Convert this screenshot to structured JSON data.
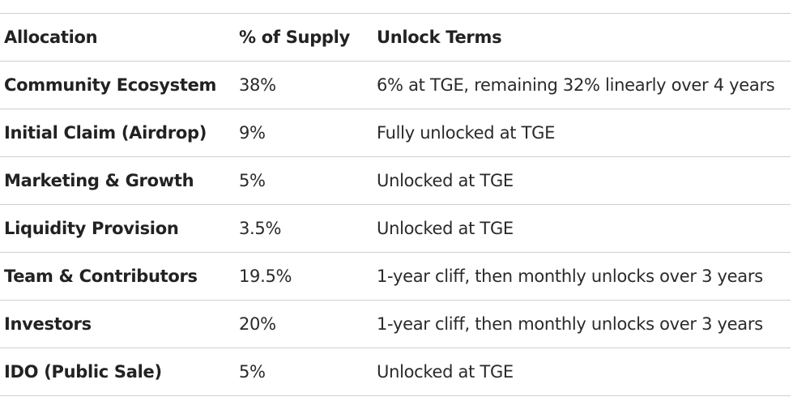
{
  "table": {
    "headers": {
      "allocation": "Allocation",
      "supply": "% of Supply",
      "terms": "Unlock Terms"
    },
    "rows": [
      {
        "allocation": "Community Ecosystem",
        "supply": "38%",
        "terms": "6% at TGE, remaining 32% linearly over 4 years"
      },
      {
        "allocation": "Initial Claim (Airdrop)",
        "supply": "9%",
        "terms": "Fully unlocked at TGE"
      },
      {
        "allocation": "Marketing & Growth",
        "supply": "5%",
        "terms": "Unlocked at TGE"
      },
      {
        "allocation": "Liquidity Provision",
        "supply": "3.5%",
        "terms": "Unlocked at TGE"
      },
      {
        "allocation": "Team & Contributors",
        "supply": "19.5%",
        "terms": "1-year cliff, then monthly unlocks over 3 years"
      },
      {
        "allocation": "Investors",
        "supply": "20%",
        "terms": "1-year cliff, then monthly unlocks over 3 years"
      },
      {
        "allocation": "IDO (Public Sale)",
        "supply": "5%",
        "terms": "Unlocked at TGE"
      }
    ]
  }
}
